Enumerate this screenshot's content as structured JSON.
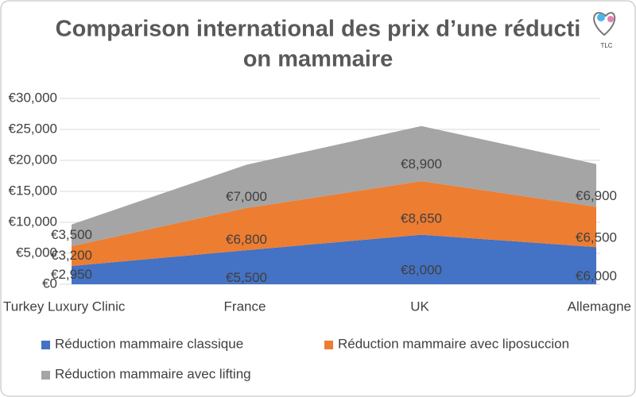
{
  "chart_data": {
    "type": "stacked-area",
    "title": [
      "Comparison international des prix d’une réducti",
      "on mammaire"
    ],
    "categories": [
      "Turkey Luxury Clinic",
      "France",
      "UK",
      "Allemagne"
    ],
    "series": [
      {
        "name": "Réduction mammaire classique",
        "color": "#4472c4",
        "values": [
          2950,
          5500,
          8000,
          6000
        ],
        "value_labels": [
          "€2,950",
          "€5,500",
          "€8,000",
          "€6,000"
        ]
      },
      {
        "name": "Réduction mammaire avec liposuccion",
        "color": "#ed7d31",
        "values": [
          3200,
          6800,
          8650,
          6500
        ],
        "value_labels": [
          "€3,200",
          "€6,800",
          "€8,650",
          "€6,500"
        ]
      },
      {
        "name": "Réduction mammaire avec lifting",
        "color": "#a5a5a5",
        "values": [
          3500,
          7000,
          8900,
          6900
        ],
        "value_labels": [
          "€3,500",
          "€7,000",
          "€8,900",
          "€6,900"
        ]
      }
    ],
    "ylim": [
      0,
      30000
    ],
    "yticks": [
      {
        "value": 0,
        "label": "€0"
      },
      {
        "value": 5000,
        "label": "€5,000"
      },
      {
        "value": 10000,
        "label": "€10,000"
      },
      {
        "value": 15000,
        "label": "€15,000"
      },
      {
        "value": 20000,
        "label": "€20,000"
      },
      {
        "value": 25000,
        "label": "€25,000"
      },
      {
        "value": 30000,
        "label": "€30,000"
      }
    ],
    "grid": true
  }
}
